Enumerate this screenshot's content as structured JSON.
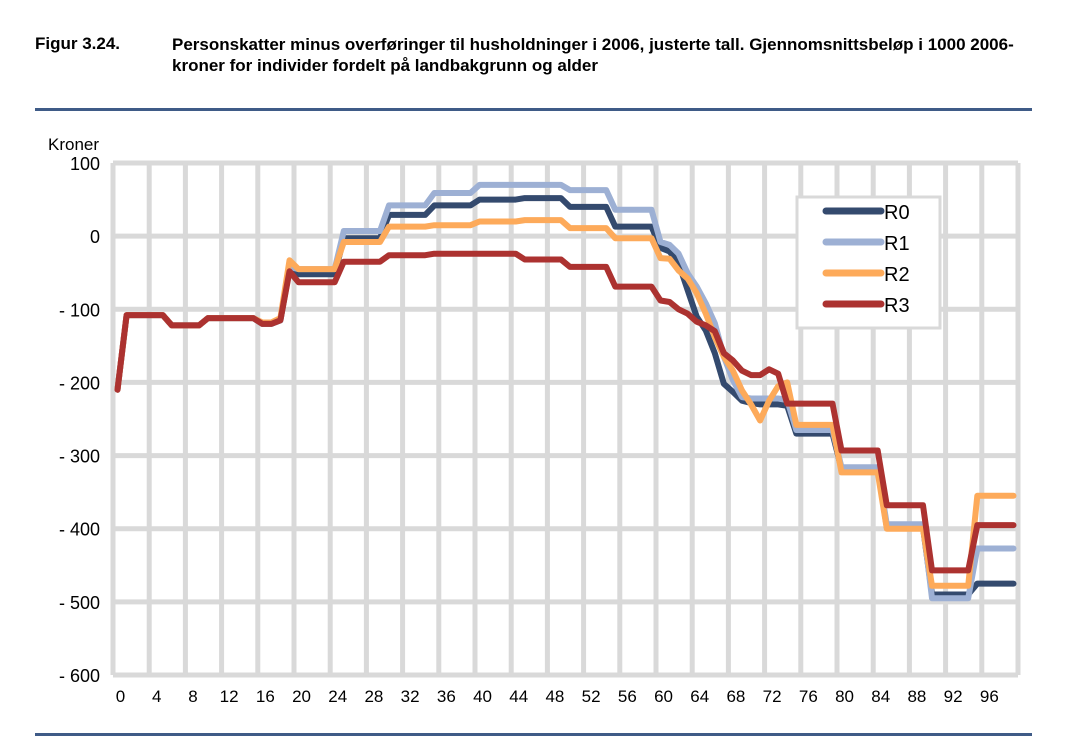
{
  "figure": {
    "number": "Figur 3.24.",
    "title": "Personskatter minus overføringer til husholdninger i 2006, justerte tall. Gjennomsnittsbeløp i 1000 2006-kroner for individer fordelt på landbakgrunn og alder"
  },
  "chart_data": {
    "type": "line",
    "title": "",
    "xlabel": "",
    "ylabel": "Kroner",
    "ylim": [
      -600,
      100
    ],
    "yticks": [
      100,
      0,
      -100,
      -200,
      -300,
      -400,
      -500,
      -600
    ],
    "ytick_labels": [
      "100",
      "0",
      "- 100",
      "- 200",
      "- 300",
      "- 400",
      "- 500",
      "- 600"
    ],
    "xtick_labels": [
      "0",
      "4",
      "8",
      "12",
      "16",
      "20",
      "24",
      "28",
      "32",
      "36",
      "40",
      "44",
      "48",
      "52",
      "56",
      "60",
      "64",
      "68",
      "72",
      "76",
      "80",
      "84",
      "88",
      "92",
      "96"
    ],
    "x_start": 0,
    "x_end": 99,
    "grid": true,
    "legend_position": "top-right",
    "series": [
      {
        "name": "R0",
        "color": "#344a6e",
        "values": [
          -210,
          -108,
          -108,
          -108,
          -108,
          -108,
          -122,
          -122,
          -122,
          -122,
          -112,
          -112,
          -112,
          -112,
          -112,
          -112,
          -120,
          -120,
          -115,
          -45,
          -52,
          -52,
          -52,
          -52,
          -52,
          -3,
          -3,
          -3,
          -3,
          -3,
          29,
          29,
          29,
          29,
          29,
          42,
          42,
          42,
          42,
          42,
          50,
          50,
          50,
          50,
          50,
          52,
          52,
          52,
          52,
          52,
          40,
          40,
          40,
          40,
          40,
          13,
          13,
          13,
          13,
          13,
          -16,
          -21,
          -37,
          -74,
          -110,
          -129,
          -160,
          -202,
          -213,
          -225,
          -228,
          -230,
          -230,
          -230,
          -232,
          -270,
          -270,
          -270,
          -270,
          -270,
          -318,
          -318,
          -318,
          -318,
          -318,
          -398,
          -398,
          -398,
          -398,
          -398,
          -490,
          -490,
          -490,
          -490,
          -490,
          -475,
          -475,
          -475,
          -475,
          -475
        ]
      },
      {
        "name": "R1",
        "color": "#9db0d4",
        "values": [
          -210,
          -108,
          -108,
          -108,
          -108,
          -108,
          -122,
          -122,
          -122,
          -122,
          -112,
          -112,
          -112,
          -112,
          -112,
          -112,
          -120,
          -120,
          -115,
          -42,
          -45,
          -45,
          -45,
          -45,
          -45,
          7,
          7,
          7,
          7,
          7,
          42,
          42,
          42,
          42,
          42,
          59,
          59,
          59,
          59,
          59,
          70,
          70,
          70,
          70,
          70,
          70,
          70,
          70,
          70,
          70,
          63,
          63,
          63,
          63,
          63,
          36,
          36,
          36,
          36,
          36,
          -8,
          -12,
          -24,
          -51,
          -69,
          -92,
          -119,
          -165,
          -197,
          -220,
          -222,
          -222,
          -222,
          -222,
          -224,
          -265,
          -265,
          -265,
          -265,
          -265,
          -316,
          -316,
          -316,
          -316,
          -316,
          -394,
          -394,
          -394,
          -394,
          -394,
          -495,
          -495,
          -495,
          -495,
          -495,
          -427,
          -427,
          -427,
          -427,
          -427
        ]
      },
      {
        "name": "R2",
        "color": "#fdaa5a",
        "values": [
          -210,
          -108,
          -108,
          -108,
          -108,
          -108,
          -122,
          -122,
          -122,
          -122,
          -112,
          -112,
          -112,
          -112,
          -112,
          -112,
          -118,
          -118,
          -112,
          -33,
          -45,
          -45,
          -45,
          -45,
          -45,
          -8,
          -8,
          -8,
          -8,
          -8,
          13,
          13,
          13,
          13,
          13,
          15,
          15,
          15,
          15,
          15,
          20,
          20,
          20,
          20,
          20,
          22,
          22,
          22,
          22,
          22,
          11,
          11,
          11,
          11,
          11,
          -3,
          -3,
          -3,
          -3,
          -3,
          -30,
          -31,
          -47,
          -58,
          -78,
          -106,
          -138,
          -165,
          -184,
          -211,
          -230,
          -252,
          -225,
          -205,
          -200,
          -258,
          -258,
          -258,
          -258,
          -258,
          -323,
          -323,
          -323,
          -323,
          -323,
          -400,
          -400,
          -400,
          -400,
          -400,
          -478,
          -478,
          -478,
          -478,
          -478,
          -355,
          -355,
          -355,
          -355,
          -355
        ]
      },
      {
        "name": "R3",
        "color": "#ac3230",
        "values": [
          -210,
          -108,
          -108,
          -108,
          -108,
          -108,
          -122,
          -122,
          -122,
          -122,
          -112,
          -112,
          -112,
          -112,
          -112,
          -112,
          -120,
          -120,
          -115,
          -48,
          -63,
          -63,
          -63,
          -63,
          -63,
          -35,
          -35,
          -35,
          -35,
          -35,
          -26,
          -26,
          -26,
          -26,
          -26,
          -24,
          -24,
          -24,
          -24,
          -24,
          -24,
          -24,
          -24,
          -24,
          -24,
          -32,
          -32,
          -32,
          -32,
          -32,
          -42,
          -42,
          -42,
          -42,
          -42,
          -69,
          -69,
          -69,
          -69,
          -69,
          -88,
          -90,
          -100,
          -106,
          -117,
          -122,
          -130,
          -160,
          -170,
          -184,
          -190,
          -190,
          -182,
          -188,
          -229,
          -229,
          -229,
          -229,
          -229,
          -229,
          -293,
          -293,
          -293,
          -293,
          -293,
          -368,
          -368,
          -368,
          -368,
          -368,
          -457,
          -457,
          -457,
          -457,
          -457,
          -395,
          -395,
          -395,
          -395,
          -395
        ]
      }
    ]
  }
}
